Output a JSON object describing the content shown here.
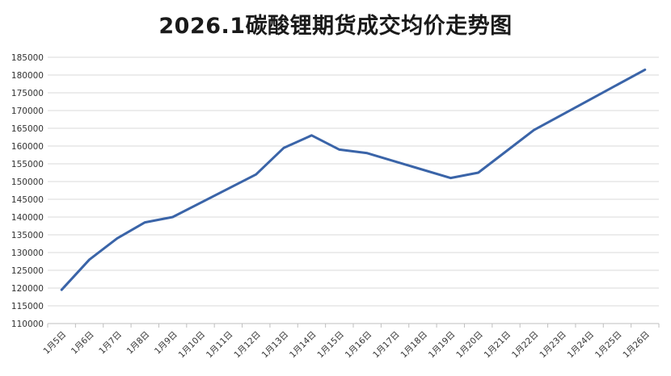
{
  "chart_data": {
    "type": "line",
    "title": "2026.1碳酸锂期货成交均价走势图",
    "xlabel": "",
    "ylabel": "",
    "ylim": [
      110000,
      185000
    ],
    "ytick_step": 5000,
    "grid": true,
    "legend": "none",
    "categories": [
      "1月5日",
      "1月6日",
      "1月7日",
      "1月8日",
      "1月9日",
      "1月10日",
      "1月11日",
      "1月12日",
      "1月13日",
      "1月14日",
      "1月15日",
      "1月16日",
      "1月17日",
      "1月18日",
      "1月19日",
      "1月20日",
      "1月21日",
      "1月22日",
      "1月23日",
      "1月24日",
      "1月25日",
      "1月26日"
    ],
    "series": [
      {
        "color": "#3a64a8",
        "values": [
          119500,
          128000,
          134000,
          138500,
          140000,
          null,
          null,
          152000,
          159500,
          163000,
          159000,
          158000,
          null,
          null,
          151000,
          152500,
          null,
          164500,
          null,
          null,
          null,
          181500
        ]
      }
    ]
  }
}
